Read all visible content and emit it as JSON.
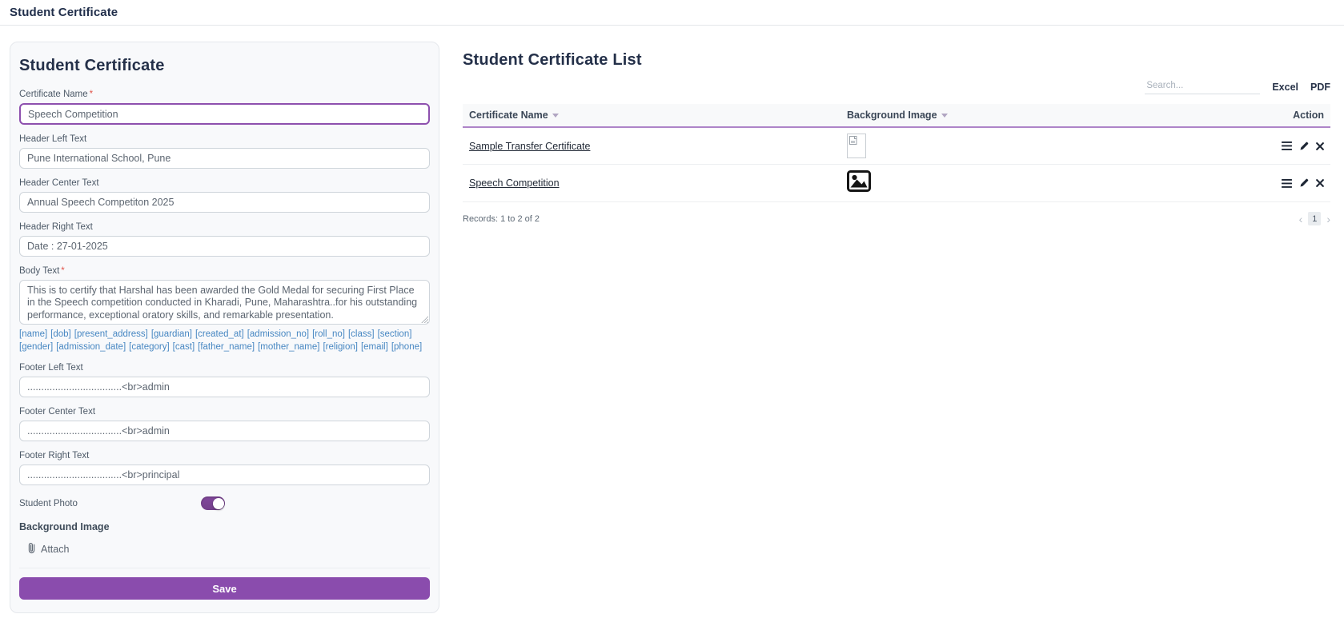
{
  "app": {
    "page_title": "Student Certificate",
    "required_mark": "*"
  },
  "form": {
    "title": "Student Certificate",
    "fields": {
      "certificate_name": {
        "label": "Certificate Name",
        "required": true,
        "value": "Speech Competition"
      },
      "header_left": {
        "label": "Header Left Text",
        "value": "Pune International School, Pune"
      },
      "header_center": {
        "label": "Header Center Text",
        "value": "Annual Speech Competiton 2025"
      },
      "header_right": {
        "label": "Header Right Text",
        "value": "Date : 27-01-2025"
      },
      "body_text": {
        "label": "Body Text",
        "required": true,
        "value": "This is to certify that Harshal has been awarded the Gold Medal for securing First Place in the Speech competition conducted in Kharadi, Pune, Maharashtra..for his outstanding performance, exceptional oratory skills, and remarkable presentation."
      },
      "footer_left": {
        "label": "Footer Left Text",
        "value": "..................................<br>admin"
      },
      "footer_center": {
        "label": "Footer Center Text",
        "value": "..................................<br>admin"
      },
      "footer_right": {
        "label": "Footer Right Text",
        "value": "..................................<br>principal"
      },
      "student_photo": {
        "label": "Student Photo",
        "enabled": true
      },
      "background_image": {
        "label": "Background Image",
        "attach_label": "Attach"
      }
    },
    "merge_fields": [
      "[name]",
      "[dob]",
      "[present_address]",
      "[guardian]",
      "[created_at]",
      "[admission_no]",
      "[roll_no]",
      "[class]",
      "[section]",
      "[gender]",
      "[admission_date]",
      "[category]",
      "[cast]",
      "[father_name]",
      "[mother_name]",
      "[religion]",
      "[email]",
      "[phone]"
    ],
    "save_label": "Save"
  },
  "list": {
    "title": "Student Certificate List",
    "search_placeholder": "Search...",
    "export_excel": "Excel",
    "export_pdf": "PDF",
    "columns": [
      "Certificate Name",
      "Background Image",
      "Action"
    ],
    "rows": [
      {
        "certificate_name": "Sample Transfer Certificate",
        "background_image": "broken-image-placeholder"
      },
      {
        "certificate_name": "Speech Competition",
        "background_image": "image-thumbnail"
      }
    ],
    "records_text": "Records: 1 to 2 of 2",
    "pagination": {
      "prev": "‹",
      "current_page": "1",
      "next": "›"
    }
  },
  "colors": {
    "accent_purple": "#8a4cad",
    "focus_border": "#8d50ae",
    "header_underline": "#ae84c8",
    "tag_blue": "#4787c2",
    "required_red": "#e2574c"
  }
}
